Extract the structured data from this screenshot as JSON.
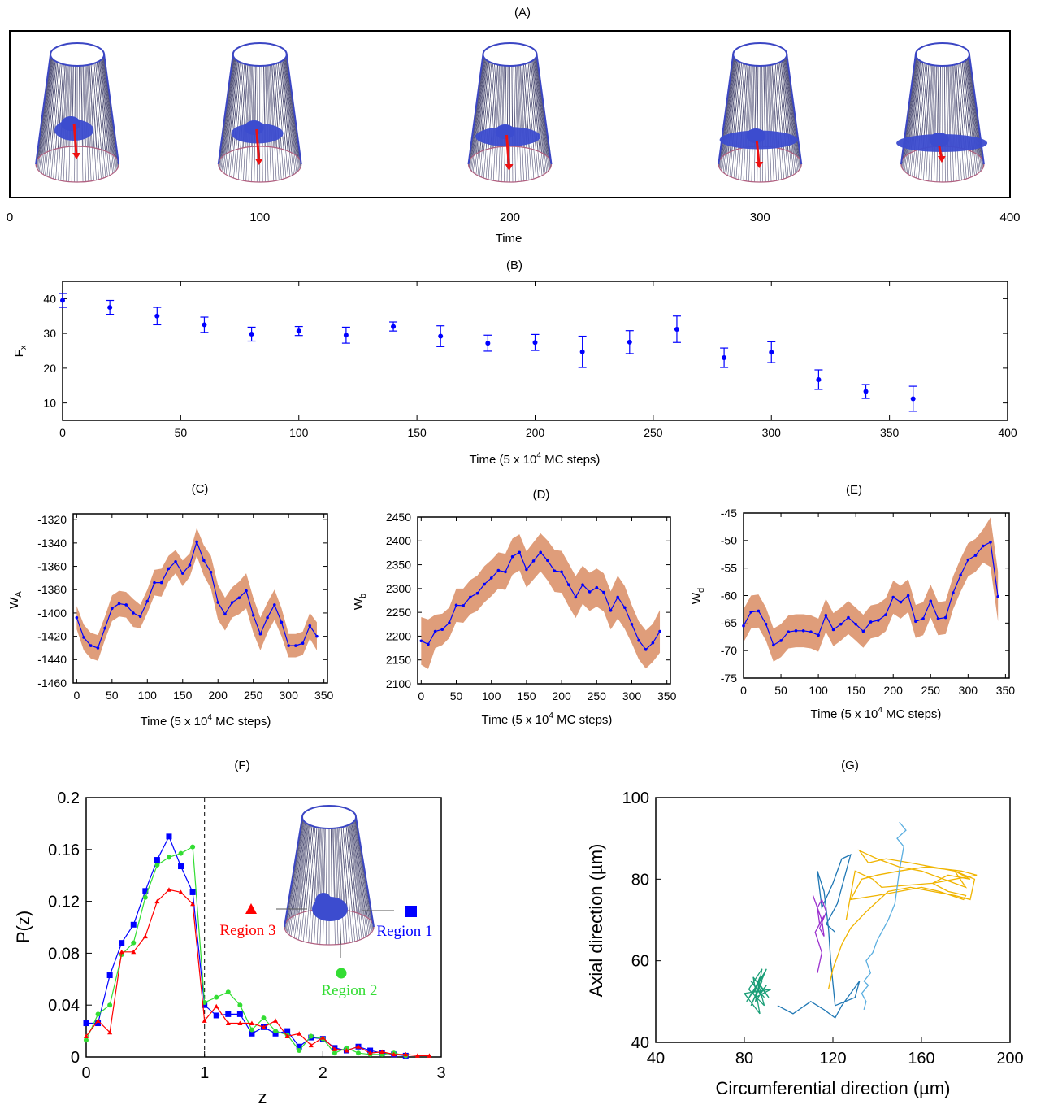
{
  "panels": {
    "A": {
      "label": "(A)",
      "xlabel": "Time",
      "xlim": [
        0,
        400
      ],
      "xticks": [
        "0",
        "100",
        "200",
        "300",
        "400"
      ],
      "snapshots": [
        {
          "time": 27,
          "arrow": "long"
        },
        {
          "time": 100,
          "arrow": "long"
        },
        {
          "time": 200,
          "arrow": "long"
        },
        {
          "time": 300,
          "arrow": "medium"
        },
        {
          "time": 373,
          "arrow": "short"
        }
      ]
    },
    "B": {
      "label": "(B)",
      "ylabel": "F",
      "ylabel_sub": "x",
      "xlabel_pre": "Time (5 x 10",
      "xlabel_sup": "4",
      "xlabel_post": " MC steps)",
      "xticks": [
        "0",
        "50",
        "100",
        "150",
        "200",
        "250",
        "300",
        "350",
        "400"
      ],
      "yticks": [
        "10",
        "20",
        "30",
        "40"
      ]
    },
    "C": {
      "label": "(C)",
      "ylabel": "W",
      "ylabel_sub": "A",
      "xlabel_pre": "Time (5 x 10",
      "xlabel_sup": "4",
      "xlabel_post": " MC steps)",
      "xticks": [
        "0",
        "50",
        "100",
        "150",
        "200",
        "250",
        "300",
        "350"
      ],
      "yticks": [
        "-1460",
        "-1440",
        "-1420",
        "-1400",
        "-1380",
        "-1360",
        "-1340",
        "-1320"
      ]
    },
    "D": {
      "label": "(D)",
      "ylabel": "W",
      "ylabel_sub": "b",
      "xlabel_pre": "Time (5 x 10",
      "xlabel_sup": "4",
      "xlabel_post": " MC steps)",
      "xticks": [
        "0",
        "50",
        "100",
        "150",
        "200",
        "250",
        "300",
        "350"
      ],
      "yticks": [
        "2100",
        "2150",
        "2200",
        "2250",
        "2300",
        "2350",
        "2400",
        "2450"
      ]
    },
    "E": {
      "label": "(E)",
      "ylabel": "W",
      "ylabel_sub": "d",
      "xlabel_pre": "Time (5 x 10",
      "xlabel_sup": "4",
      "xlabel_post": " MC steps)",
      "xticks": [
        "0",
        "50",
        "100",
        "150",
        "200",
        "250",
        "300",
        "350"
      ],
      "yticks": [
        "-75",
        "-70",
        "-65",
        "-60",
        "-55",
        "-50",
        "-45"
      ]
    },
    "F": {
      "label": "(F)",
      "xlabel": "z",
      "ylabel": "P(z)",
      "xticks": [
        "0",
        "1",
        "2",
        "3"
      ],
      "yticks": [
        "0",
        "0.04",
        "0.08",
        "0.12",
        "0.16",
        "0.2"
      ],
      "legend": [
        {
          "name": "Region 3",
          "color": "#ff0000",
          "marker": "triangle"
        },
        {
          "name": "Region 1",
          "color": "#0000ff",
          "marker": "square"
        },
        {
          "name": "Region 2",
          "color": "#33dd33",
          "marker": "circle"
        }
      ]
    },
    "G": {
      "label": "(G)",
      "xlabel": "Circumferential direction (µm)",
      "ylabel": "Axial direction (µm)",
      "xticks": [
        "40",
        "80",
        "120",
        "160",
        "200"
      ],
      "yticks": [
        "40",
        "60",
        "80",
        "100"
      ]
    }
  },
  "chart_data": [
    {
      "panel": "B",
      "type": "scatter",
      "title": "",
      "xlabel": "Time (5 x 10^4 MC steps)",
      "ylabel": "F_x",
      "xlim": [
        0,
        400
      ],
      "ylim": [
        5,
        45
      ],
      "x": [
        0,
        20,
        40,
        60,
        80,
        100,
        120,
        140,
        160,
        180,
        200,
        220,
        240,
        260,
        280,
        300,
        320,
        340,
        360
      ],
      "values": [
        39.5,
        37.5,
        35,
        32.5,
        29.8,
        30.7,
        29.5,
        32,
        29.2,
        27.2,
        27.4,
        24.7,
        27.5,
        31.2,
        23,
        24.6,
        16.7,
        13.3,
        11.2
      ],
      "errors": [
        2,
        2,
        2.5,
        2.2,
        2,
        1.3,
        2.3,
        1.3,
        3,
        2.3,
        2.3,
        4.5,
        3.3,
        3.8,
        2.8,
        3,
        2.8,
        2,
        3.6
      ],
      "color": "#0000ff"
    },
    {
      "panel": "C",
      "type": "area",
      "ylabel": "W_A",
      "xlim": [
        -5,
        355
      ],
      "ylim": [
        -1460,
        -1315
      ],
      "x": [
        0,
        10,
        20,
        30,
        40,
        50,
        60,
        70,
        80,
        90,
        100,
        110,
        120,
        130,
        140,
        150,
        160,
        170,
        180,
        190,
        200,
        210,
        220,
        230,
        240,
        250,
        260,
        270,
        280,
        290,
        300,
        310,
        320,
        330,
        340
      ],
      "values": [
        -1404,
        -1421,
        -1428,
        -1430,
        -1413,
        -1396,
        -1392,
        -1393,
        -1400,
        -1403,
        -1390,
        -1374,
        -1374,
        -1362,
        -1356,
        -1366,
        -1359,
        -1339,
        -1355,
        -1365,
        -1391,
        -1401,
        -1391,
        -1387,
        -1381,
        -1402,
        -1418,
        -1404,
        -1393,
        -1408,
        -1428,
        -1428,
        -1426,
        -1411,
        -1420
      ],
      "band_halfwidth": [
        10,
        11,
        11,
        11,
        10,
        11,
        11,
        11,
        12,
        10,
        10,
        11,
        12,
        11,
        10,
        11,
        10,
        12,
        13,
        14,
        15,
        14,
        13,
        14,
        15,
        15,
        14,
        13,
        13,
        12,
        10,
        10,
        10,
        11,
        12
      ],
      "band_color": "#d98c63",
      "color": "#0000ff"
    },
    {
      "panel": "D",
      "type": "area",
      "ylabel": "W_b",
      "xlim": [
        -5,
        355
      ],
      "ylim": [
        2100,
        2450
      ],
      "x": [
        0,
        10,
        20,
        30,
        40,
        50,
        60,
        70,
        80,
        90,
        100,
        110,
        120,
        130,
        140,
        150,
        160,
        170,
        180,
        190,
        200,
        210,
        220,
        230,
        240,
        250,
        260,
        270,
        280,
        290,
        300,
        310,
        320,
        330,
        340
      ],
      "values": [
        2190,
        2183,
        2210,
        2214,
        2228,
        2265,
        2264,
        2282,
        2290,
        2309,
        2322,
        2338,
        2335,
        2367,
        2376,
        2340,
        2358,
        2376,
        2359,
        2337,
        2335,
        2308,
        2282,
        2308,
        2293,
        2302,
        2292,
        2254,
        2282,
        2260,
        2225,
        2191,
        2172,
        2186,
        2210
      ],
      "band_halfwidth": [
        50,
        52,
        35,
        33,
        32,
        35,
        36,
        36,
        37,
        38,
        38,
        38,
        38,
        38,
        38,
        38,
        39,
        40,
        42,
        44,
        44,
        45,
        44,
        40,
        40,
        40,
        40,
        40,
        45,
        45,
        40,
        40,
        40,
        40,
        45
      ],
      "band_color": "#d98c63",
      "color": "#0000ff"
    },
    {
      "panel": "E",
      "type": "area",
      "ylabel": "W_d",
      "xlim": [
        0,
        355
      ],
      "ylim": [
        -75,
        -45
      ],
      "x": [
        0,
        10,
        20,
        30,
        40,
        50,
        60,
        70,
        80,
        90,
        100,
        110,
        120,
        130,
        140,
        150,
        160,
        170,
        180,
        190,
        200,
        210,
        220,
        230,
        240,
        250,
        260,
        270,
        280,
        290,
        300,
        310,
        320,
        330,
        340
      ],
      "values": [
        -65.5,
        -63,
        -62.8,
        -65.2,
        -69,
        -68.2,
        -66.6,
        -66.4,
        -66.4,
        -66.6,
        -67.2,
        -63.6,
        -66.2,
        -65.2,
        -64,
        -65.2,
        -66.5,
        -64.8,
        -64.5,
        -63.5,
        -60.3,
        -61.2,
        -60,
        -64.7,
        -64.2,
        -61,
        -64.2,
        -64,
        -59.5,
        -56.3,
        -53.5,
        -52.7,
        -51,
        -50.3,
        -60.2
      ],
      "band_halfwidth": [
        3,
        3,
        3,
        3,
        3,
        3,
        3,
        3,
        3,
        3,
        3,
        3,
        3,
        3,
        3,
        3,
        3,
        3,
        3,
        3,
        3,
        3,
        3,
        3,
        3,
        3,
        3,
        3,
        3,
        3,
        3,
        3,
        3,
        4.5,
        4.5
      ],
      "band_color": "#d98c63",
      "color": "#0000ff"
    },
    {
      "panel": "F",
      "type": "line",
      "xlabel": "z",
      "ylabel": "P(z)",
      "xlim": [
        0,
        3
      ],
      "ylim": [
        0,
        0.2
      ],
      "series": [
        {
          "name": "Region 1",
          "color": "#0000ff",
          "marker": "square",
          "x": [
            0,
            0.1,
            0.2,
            0.3,
            0.4,
            0.5,
            0.6,
            0.7,
            0.8,
            0.9,
            1.0,
            1.1,
            1.2,
            1.3,
            1.4,
            1.5,
            1.6,
            1.7,
            1.8,
            1.9,
            2.0,
            2.1,
            2.2,
            2.3,
            2.4,
            2.5,
            2.6,
            2.7
          ],
          "values": [
            0.026,
            0.026,
            0.063,
            0.088,
            0.102,
            0.128,
            0.152,
            0.17,
            0.147,
            0.127,
            0.04,
            0.032,
            0.033,
            0.033,
            0.018,
            0.023,
            0.018,
            0.02,
            0.008,
            0.015,
            0.014,
            0.007,
            0.005,
            0.008,
            0.005,
            0.003,
            0.002,
            0.001
          ]
        },
        {
          "name": "Region 2",
          "color": "#33dd33",
          "marker": "circle",
          "x": [
            0,
            0.1,
            0.2,
            0.3,
            0.4,
            0.5,
            0.6,
            0.7,
            0.8,
            0.9,
            1.0,
            1.1,
            1.2,
            1.3,
            1.4,
            1.5,
            1.6,
            1.7,
            1.8,
            1.9,
            2.0,
            2.1,
            2.2,
            2.3,
            2.4,
            2.5,
            2.6,
            2.7
          ],
          "values": [
            0.013,
            0.033,
            0.04,
            0.079,
            0.088,
            0.123,
            0.148,
            0.154,
            0.157,
            0.162,
            0.042,
            0.046,
            0.05,
            0.04,
            0.021,
            0.03,
            0.02,
            0.017,
            0.005,
            0.016,
            0.014,
            0.003,
            0.007,
            0.003,
            0.002,
            0.002,
            0.003,
            0.001
          ]
        },
        {
          "name": "Region 3",
          "color": "#ff0000",
          "marker": "triangle",
          "x": [
            0,
            0.1,
            0.2,
            0.3,
            0.4,
            0.5,
            0.6,
            0.7,
            0.8,
            0.9,
            1.0,
            1.1,
            1.2,
            1.3,
            1.4,
            1.5,
            1.6,
            1.7,
            1.8,
            1.9,
            2.0,
            2.1,
            2.2,
            2.3,
            2.4,
            2.5,
            2.6,
            2.7,
            2.8,
            2.9
          ],
          "values": [
            0.016,
            0.028,
            0.019,
            0.081,
            0.081,
            0.093,
            0.12,
            0.129,
            0.127,
            0.118,
            0.028,
            0.039,
            0.026,
            0.026,
            0.026,
            0.023,
            0.028,
            0.016,
            0.018,
            0.009,
            0.015,
            0.006,
            0.005,
            0.008,
            0.003,
            0.004,
            0.002,
            0.002,
            0.001,
            0.001
          ]
        }
      ]
    },
    {
      "panel": "G",
      "type": "line",
      "xlabel": "Circumferential direction (µm)",
      "ylabel": "Axial direction (µm)",
      "xlim": [
        40,
        200
      ],
      "ylim": [
        40,
        100
      ],
      "series": [
        {
          "color": "#1a9e77",
          "x": [
            87,
            84,
            89,
            81,
            86,
            90,
            83,
            88,
            85,
            92,
            80,
            87,
            84,
            91,
            86,
            89,
            82,
            88,
            85,
            90,
            87,
            83,
            89,
            86
          ],
          "values": [
            56,
            52,
            57,
            50,
            54,
            58,
            49,
            55,
            51,
            53,
            52,
            47,
            56,
            51,
            55,
            49,
            53,
            58,
            50,
            54,
            52,
            55,
            51,
            53
          ]
        },
        {
          "color": "#1f77b4",
          "x": [
            95,
            102,
            110,
            116,
            121,
            124,
            128,
            132,
            130,
            121,
            119,
            118,
            116,
            113,
            115,
            120,
            124,
            128,
            122,
            117,
            121
          ],
          "values": [
            49,
            47,
            50,
            48,
            46,
            49,
            52,
            55,
            51,
            49,
            60,
            68,
            77,
            82,
            73,
            79,
            85,
            86,
            74,
            69,
            67
          ]
        },
        {
          "color": "#9b30ce",
          "x": [
            113,
            115,
            112,
            116,
            114,
            113,
            115,
            117,
            114,
            116,
            115,
            111
          ],
          "values": [
            57,
            62,
            67,
            71,
            69,
            73,
            75,
            72,
            68,
            66,
            70,
            76
          ]
        },
        {
          "color": "#f0b400",
          "x": [
            118,
            120,
            124,
            128,
            135,
            145,
            155,
            165,
            175,
            182,
            184,
            175,
            180,
            170,
            160,
            150,
            140,
            132,
            136,
            144,
            155,
            165,
            175,
            182,
            172,
            165,
            172,
            180,
            179,
            168,
            160,
            150,
            140,
            128,
            133,
            140,
            150,
            162,
            178,
            185,
            165,
            142,
            138,
            130,
            126
          ],
          "values": [
            53,
            58,
            64,
            68,
            72,
            77,
            78,
            77,
            76,
            75,
            80,
            82,
            78,
            80,
            82,
            83,
            85,
            87,
            84,
            85,
            84,
            83,
            82,
            80,
            81,
            79,
            77,
            76,
            75,
            77,
            78,
            77,
            76,
            75,
            80,
            81,
            82,
            83,
            82,
            81,
            79,
            78,
            80,
            82,
            70
          ]
        },
        {
          "color": "#5aaee0",
          "x": [
            150,
            153,
            149,
            152,
            151,
            150,
            149,
            148,
            145,
            142,
            140,
            138,
            135,
            137,
            134,
            136,
            133,
            135,
            134
          ],
          "values": [
            94,
            92,
            90,
            88,
            85,
            82,
            78,
            74,
            70,
            67,
            65,
            62,
            60,
            57,
            55,
            54,
            52,
            50,
            48
          ]
        }
      ]
    }
  ]
}
